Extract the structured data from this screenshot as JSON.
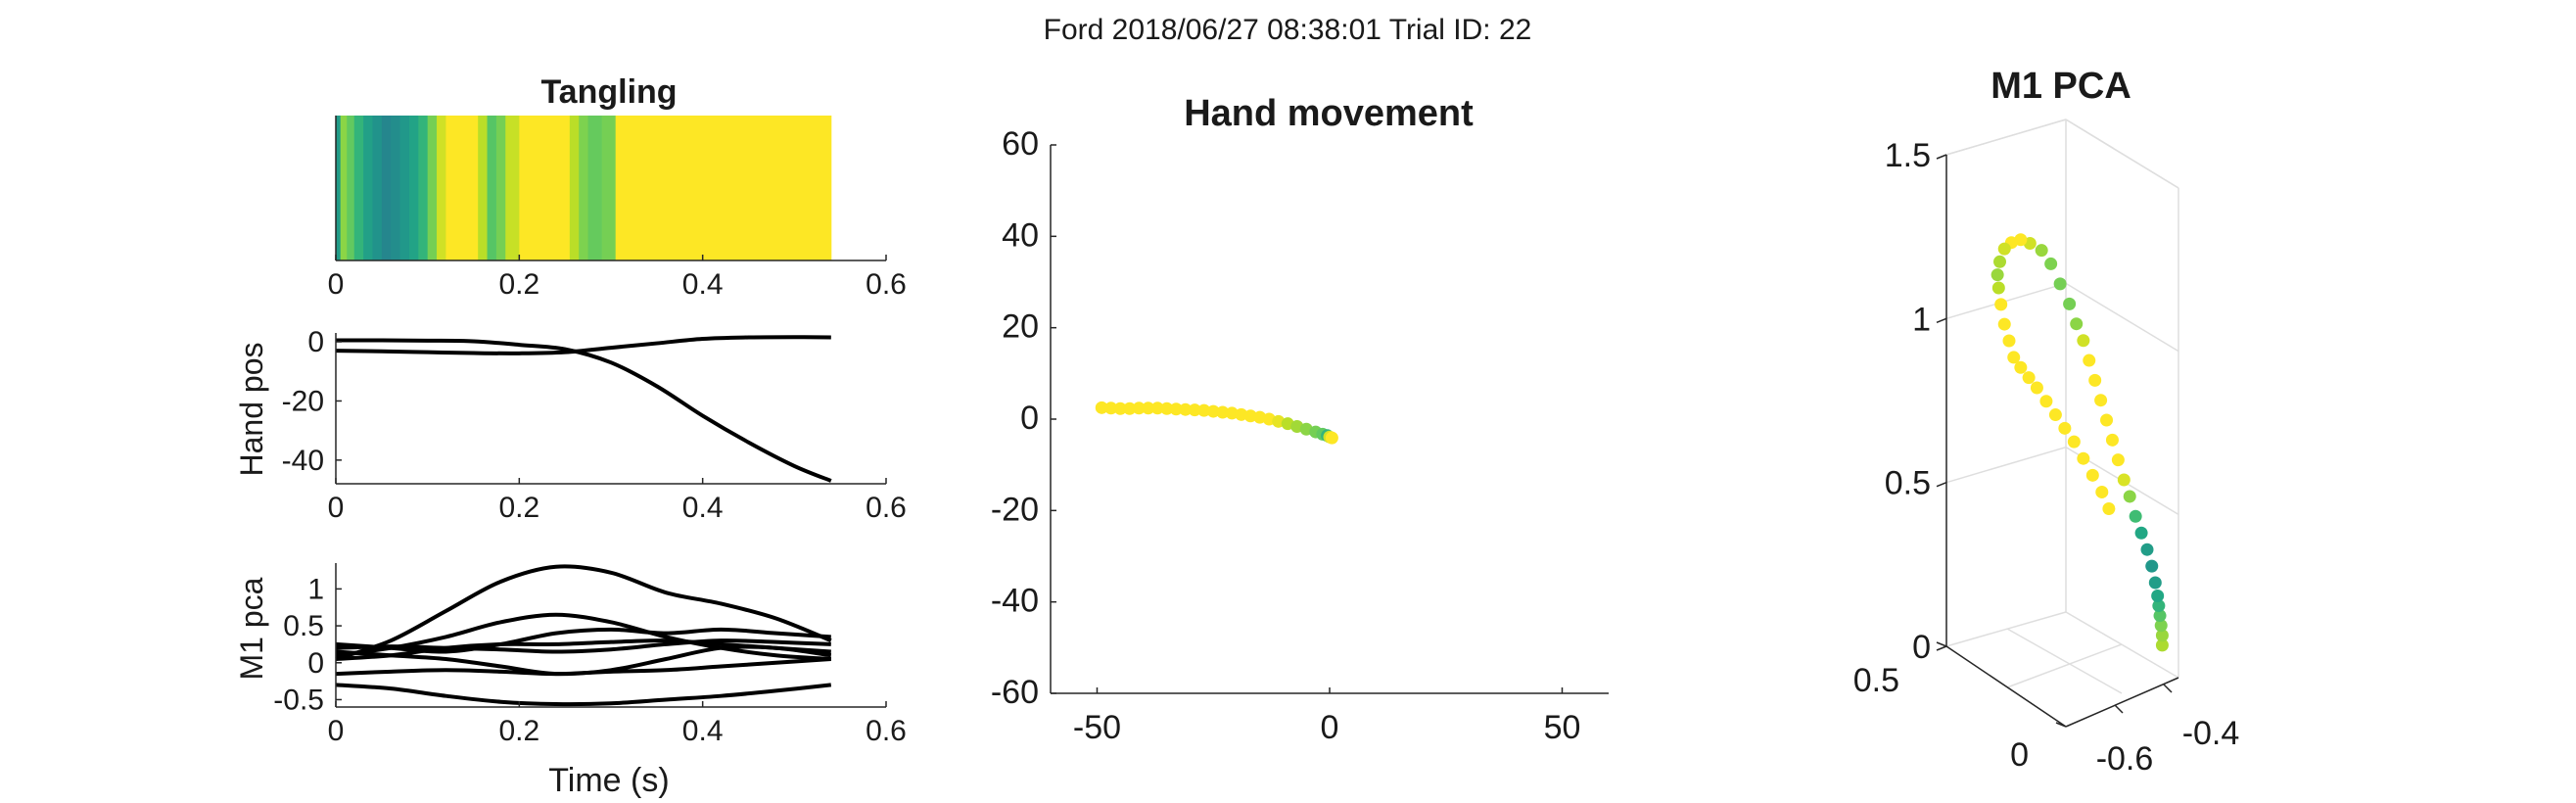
{
  "figure": {
    "suptitle": "Ford 2018/06/27 08:38:01 Trial ID: 22"
  },
  "colors": {
    "viridis_stops": [
      "#3e4c8a",
      "#2a788e",
      "#21918c",
      "#22a884",
      "#44bf70",
      "#7ad151",
      "#bddf26",
      "#fde725"
    ],
    "line": "#000000",
    "axis": "#262626",
    "grid": "#dedede"
  },
  "chart_data": [
    {
      "id": "tangling",
      "type": "heatmap",
      "title": "Tangling",
      "xlim": [
        0,
        0.6
      ],
      "xticks": [
        0,
        0.2,
        0.4,
        0.6
      ],
      "x_range": [
        0,
        0.54
      ],
      "bands": [
        {
          "x0": 0.0,
          "x1": 0.005,
          "v": 0.35
        },
        {
          "x0": 0.005,
          "x1": 0.012,
          "v": 0.75
        },
        {
          "x0": 0.012,
          "x1": 0.02,
          "v": 0.65
        },
        {
          "x0": 0.02,
          "x1": 0.03,
          "v": 0.5
        },
        {
          "x0": 0.03,
          "x1": 0.04,
          "v": 0.38
        },
        {
          "x0": 0.04,
          "x1": 0.05,
          "v": 0.3
        },
        {
          "x0": 0.05,
          "x1": 0.06,
          "v": 0.22
        },
        {
          "x0": 0.06,
          "x1": 0.07,
          "v": 0.26
        },
        {
          "x0": 0.07,
          "x1": 0.08,
          "v": 0.33
        },
        {
          "x0": 0.08,
          "x1": 0.09,
          "v": 0.4
        },
        {
          "x0": 0.09,
          "x1": 0.1,
          "v": 0.5
        },
        {
          "x0": 0.1,
          "x1": 0.11,
          "v": 0.7
        },
        {
          "x0": 0.11,
          "x1": 0.12,
          "v": 0.9
        },
        {
          "x0": 0.12,
          "x1": 0.155,
          "v": 1.0
        },
        {
          "x0": 0.155,
          "x1": 0.165,
          "v": 0.85
        },
        {
          "x0": 0.165,
          "x1": 0.175,
          "v": 0.62
        },
        {
          "x0": 0.175,
          "x1": 0.185,
          "v": 0.7
        },
        {
          "x0": 0.185,
          "x1": 0.2,
          "v": 0.88
        },
        {
          "x0": 0.2,
          "x1": 0.255,
          "v": 1.0
        },
        {
          "x0": 0.255,
          "x1": 0.265,
          "v": 0.85
        },
        {
          "x0": 0.265,
          "x1": 0.275,
          "v": 0.72
        },
        {
          "x0": 0.275,
          "x1": 0.29,
          "v": 0.66
        },
        {
          "x0": 0.29,
          "x1": 0.305,
          "v": 0.7
        },
        {
          "x0": 0.305,
          "x1": 0.54,
          "v": 1.0
        }
      ]
    },
    {
      "id": "hand_pos",
      "type": "line",
      "ylabel": "Hand pos",
      "xlim": [
        0,
        0.6
      ],
      "ylim": [
        -48,
        3
      ],
      "xticks": [
        0,
        0.2,
        0.4,
        0.6
      ],
      "yticks": [
        0,
        -20,
        -40
      ],
      "series": [
        {
          "x": [
            0,
            0.05,
            0.1,
            0.15,
            0.2,
            0.25,
            0.3,
            0.35,
            0.4,
            0.45,
            0.5,
            0.54
          ],
          "y": [
            0.5,
            0.5,
            0.4,
            0.2,
            -1,
            -2.5,
            -7,
            -15,
            -25,
            -34,
            -42,
            -47
          ]
        },
        {
          "x": [
            0,
            0.05,
            0.1,
            0.15,
            0.2,
            0.25,
            0.3,
            0.35,
            0.4,
            0.45,
            0.5,
            0.54
          ],
          "y": [
            -3,
            -3.2,
            -3.5,
            -3.8,
            -3.9,
            -3.5,
            -2,
            -0.5,
            1,
            1.5,
            1.6,
            1.5
          ]
        }
      ]
    },
    {
      "id": "m1_pca_time",
      "type": "line",
      "xlabel": "Time (s)",
      "ylabel": "M1 pca",
      "xlim": [
        0,
        0.6
      ],
      "ylim": [
        -0.6,
        1.35
      ],
      "xticks": [
        0,
        0.2,
        0.4,
        0.6
      ],
      "yticks": [
        1,
        0.5,
        0,
        -0.5
      ],
      "series": [
        {
          "x": [
            0,
            0.06,
            0.12,
            0.18,
            0.24,
            0.3,
            0.36,
            0.42,
            0.48,
            0.54
          ],
          "y": [
            0.05,
            0.3,
            0.7,
            1.1,
            1.3,
            1.22,
            0.95,
            0.8,
            0.6,
            0.3
          ]
        },
        {
          "x": [
            0,
            0.06,
            0.12,
            0.18,
            0.24,
            0.3,
            0.36,
            0.42,
            0.48,
            0.54
          ],
          "y": [
            0.1,
            0.2,
            0.35,
            0.55,
            0.65,
            0.55,
            0.35,
            0.2,
            0.1,
            0.05
          ]
        },
        {
          "x": [
            0,
            0.06,
            0.12,
            0.18,
            0.24,
            0.3,
            0.36,
            0.42,
            0.48,
            0.54
          ],
          "y": [
            0.25,
            0.2,
            0.15,
            0.25,
            0.4,
            0.45,
            0.4,
            0.45,
            0.4,
            0.35
          ]
        },
        {
          "x": [
            0,
            0.06,
            0.12,
            0.18,
            0.24,
            0.3,
            0.36,
            0.42,
            0.48,
            0.54
          ],
          "y": [
            0.05,
            0.1,
            0.2,
            0.25,
            0.25,
            0.28,
            0.3,
            0.25,
            0.2,
            0.15
          ]
        },
        {
          "x": [
            0,
            0.06,
            0.12,
            0.18,
            0.24,
            0.3,
            0.36,
            0.42,
            0.48,
            0.54
          ],
          "y": [
            0.15,
            0.1,
            0.05,
            -0.05,
            -0.15,
            -0.1,
            0.05,
            0.2,
            0.2,
            0.1
          ]
        },
        {
          "x": [
            0,
            0.06,
            0.12,
            0.18,
            0.24,
            0.3,
            0.36,
            0.42,
            0.48,
            0.54
          ],
          "y": [
            -0.15,
            -0.12,
            -0.1,
            -0.12,
            -0.15,
            -0.12,
            -0.1,
            -0.05,
            0.0,
            0.05
          ]
        },
        {
          "x": [
            0,
            0.06,
            0.12,
            0.18,
            0.24,
            0.3,
            0.36,
            0.42,
            0.48,
            0.54
          ],
          "y": [
            -0.3,
            -0.35,
            -0.45,
            -0.53,
            -0.56,
            -0.55,
            -0.5,
            -0.45,
            -0.38,
            -0.3
          ]
        },
        {
          "x": [
            0,
            0.06,
            0.12,
            0.18,
            0.24,
            0.3,
            0.36,
            0.42,
            0.48,
            0.54
          ],
          "y": [
            0.2,
            0.22,
            0.2,
            0.18,
            0.15,
            0.18,
            0.25,
            0.3,
            0.28,
            0.25
          ]
        }
      ]
    },
    {
      "id": "hand_movement",
      "type": "scatter",
      "title": "Hand movement",
      "xlim": [
        -60,
        60
      ],
      "ylim": [
        -60,
        60
      ],
      "xticks": [
        -50,
        0,
        50
      ],
      "yticks": [
        60,
        40,
        20,
        0,
        -20,
        -40,
        -60
      ],
      "points": [
        {
          "x": -49,
          "y": 2.5,
          "v": 1.0
        },
        {
          "x": -47,
          "y": 2.4,
          "v": 1.0
        },
        {
          "x": -45,
          "y": 2.3,
          "v": 1.0
        },
        {
          "x": -43,
          "y": 2.3,
          "v": 1.0
        },
        {
          "x": -41,
          "y": 2.4,
          "v": 1.0
        },
        {
          "x": -39,
          "y": 2.4,
          "v": 1.0
        },
        {
          "x": -37,
          "y": 2.4,
          "v": 1.0
        },
        {
          "x": -35,
          "y": 2.3,
          "v": 1.0
        },
        {
          "x": -33,
          "y": 2.2,
          "v": 1.0
        },
        {
          "x": -31,
          "y": 2.1,
          "v": 1.0
        },
        {
          "x": -29,
          "y": 2.0,
          "v": 1.0
        },
        {
          "x": -27,
          "y": 1.9,
          "v": 1.0
        },
        {
          "x": -25,
          "y": 1.7,
          "v": 1.0
        },
        {
          "x": -23,
          "y": 1.5,
          "v": 1.0
        },
        {
          "x": -21,
          "y": 1.3,
          "v": 1.0
        },
        {
          "x": -19,
          "y": 1.0,
          "v": 1.0
        },
        {
          "x": -17,
          "y": 0.7,
          "v": 1.0
        },
        {
          "x": -15,
          "y": 0.4,
          "v": 1.0
        },
        {
          "x": -13,
          "y": 0.0,
          "v": 1.0
        },
        {
          "x": -11,
          "y": -0.5,
          "v": 0.95
        },
        {
          "x": -9,
          "y": -1.0,
          "v": 0.85
        },
        {
          "x": -7,
          "y": -1.6,
          "v": 0.8
        },
        {
          "x": -5,
          "y": -2.2,
          "v": 0.75
        },
        {
          "x": -3,
          "y": -2.8,
          "v": 0.7
        },
        {
          "x": -1.5,
          "y": -3.3,
          "v": 0.65
        },
        {
          "x": -0.5,
          "y": -3.6,
          "v": 0.5
        },
        {
          "x": 0,
          "y": -3.9,
          "v": 0.9
        },
        {
          "x": 0.5,
          "y": -4.1,
          "v": 1.0
        }
      ]
    },
    {
      "id": "m1_pca_3d",
      "type": "scatter",
      "title": "M1 PCA",
      "zticks": [
        1.5,
        1,
        0.5,
        0
      ],
      "yticks": [
        0.5,
        0
      ],
      "xticks": [
        -0.6,
        -0.4
      ],
      "zlim": [
        0,
        1.5
      ],
      "points": [
        {
          "a": 0.93,
          "z": 0.03,
          "v": 0.82
        },
        {
          "a": 0.93,
          "z": 0.06,
          "v": 0.78
        },
        {
          "a": 0.925,
          "z": 0.09,
          "v": 0.72
        },
        {
          "a": 0.92,
          "z": 0.12,
          "v": 0.62
        },
        {
          "a": 0.915,
          "z": 0.15,
          "v": 0.5
        },
        {
          "a": 0.91,
          "z": 0.18,
          "v": 0.42
        },
        {
          "a": 0.9,
          "z": 0.22,
          "v": 0.36
        },
        {
          "a": 0.885,
          "z": 0.27,
          "v": 0.32
        },
        {
          "a": 0.865,
          "z": 0.32,
          "v": 0.36
        },
        {
          "a": 0.84,
          "z": 0.37,
          "v": 0.42
        },
        {
          "a": 0.815,
          "z": 0.42,
          "v": 0.55
        },
        {
          "a": 0.79,
          "z": 0.48,
          "v": 0.75
        },
        {
          "a": 0.765,
          "z": 0.53,
          "v": 0.92
        },
        {
          "a": 0.74,
          "z": 0.59,
          "v": 1.0
        },
        {
          "a": 0.715,
          "z": 0.65,
          "v": 1.0
        },
        {
          "a": 0.69,
          "z": 0.71,
          "v": 1.0
        },
        {
          "a": 0.665,
          "z": 0.77,
          "v": 1.0
        },
        {
          "a": 0.64,
          "z": 0.83,
          "v": 1.0
        },
        {
          "a": 0.615,
          "z": 0.89,
          "v": 1.0
        },
        {
          "a": 0.59,
          "z": 0.95,
          "v": 0.9
        },
        {
          "a": 0.56,
          "z": 1.0,
          "v": 0.75
        },
        {
          "a": 0.53,
          "z": 1.06,
          "v": 0.7
        },
        {
          "a": 0.49,
          "z": 1.12,
          "v": 0.7
        },
        {
          "a": 0.45,
          "z": 1.18,
          "v": 0.72
        },
        {
          "a": 0.41,
          "z": 1.22,
          "v": 0.78
        },
        {
          "a": 0.36,
          "z": 1.24,
          "v": 0.9
        },
        {
          "a": 0.32,
          "z": 1.25,
          "v": 1.0
        },
        {
          "a": 0.28,
          "z": 1.24,
          "v": 1.0
        },
        {
          "a": 0.25,
          "z": 1.22,
          "v": 0.9
        },
        {
          "a": 0.23,
          "z": 1.18,
          "v": 0.82
        },
        {
          "a": 0.22,
          "z": 1.14,
          "v": 0.78
        },
        {
          "a": 0.225,
          "z": 1.1,
          "v": 0.85
        },
        {
          "a": 0.235,
          "z": 1.05,
          "v": 1.0
        },
        {
          "a": 0.25,
          "z": 0.99,
          "v": 1.0
        },
        {
          "a": 0.27,
          "z": 0.94,
          "v": 1.0
        },
        {
          "a": 0.29,
          "z": 0.89,
          "v": 1.0
        },
        {
          "a": 0.32,
          "z": 0.86,
          "v": 1.0
        },
        {
          "a": 0.355,
          "z": 0.83,
          "v": 1.0
        },
        {
          "a": 0.39,
          "z": 0.8,
          "v": 1.0
        },
        {
          "a": 0.43,
          "z": 0.76,
          "v": 1.0
        },
        {
          "a": 0.47,
          "z": 0.72,
          "v": 1.0
        },
        {
          "a": 0.51,
          "z": 0.68,
          "v": 1.0
        },
        {
          "a": 0.55,
          "z": 0.64,
          "v": 1.0
        },
        {
          "a": 0.59,
          "z": 0.59,
          "v": 1.0
        },
        {
          "a": 0.63,
          "z": 0.54,
          "v": 1.0
        },
        {
          "a": 0.67,
          "z": 0.49,
          "v": 1.0
        },
        {
          "a": 0.7,
          "z": 0.44,
          "v": 1.0
        }
      ]
    }
  ]
}
